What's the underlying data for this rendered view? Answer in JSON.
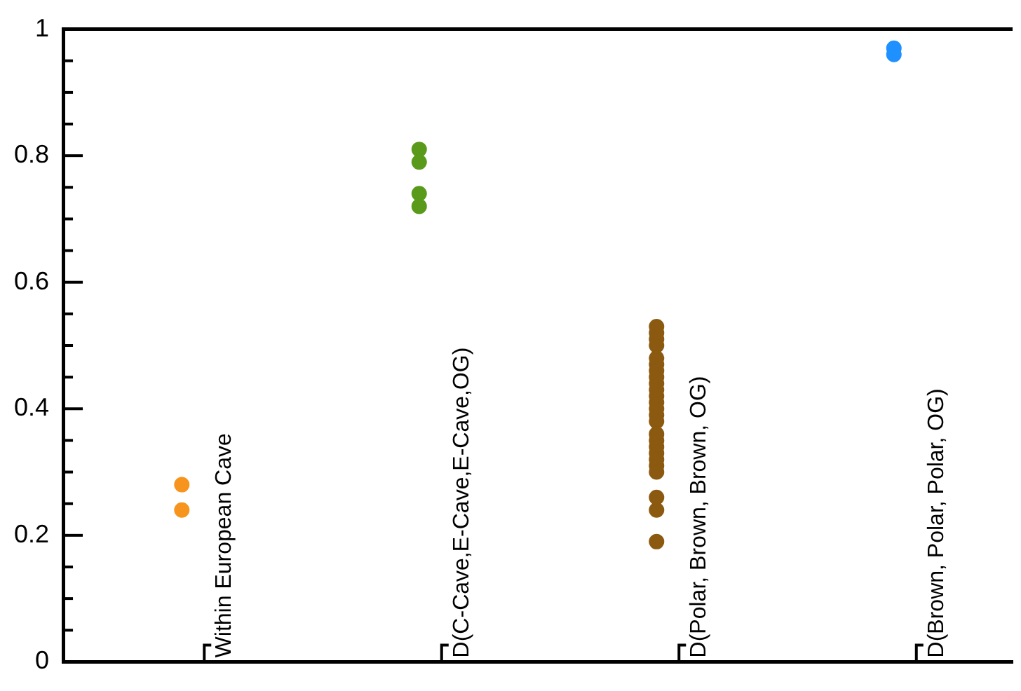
{
  "chart_data": {
    "type": "scatter",
    "categories": [
      "Within European Cave",
      "D(C-Cave,E-Cave,E-Cave,OG)",
      "D(Polar, Brown, Brown, OG)",
      "D(Brown, Polar, Polar, OG)"
    ],
    "series": [
      {
        "color": "#f7941d",
        "x": [
          "Within European Cave",
          "Within European Cave"
        ],
        "values": [
          0.28,
          0.24
        ]
      },
      {
        "color": "#5a9a1a",
        "x": [
          "D(C-Cave,E-Cave,E-Cave,OG)",
          "D(C-Cave,E-Cave,E-Cave,OG)",
          "D(C-Cave,E-Cave,E-Cave,OG)",
          "D(C-Cave,E-Cave,E-Cave,OG)"
        ],
        "values": [
          0.81,
          0.79,
          0.74,
          0.72
        ]
      },
      {
        "color": "#8b5a10",
        "x": [
          "D(Polar, Brown, Brown, OG)",
          "D(Polar, Brown, Brown, OG)",
          "D(Polar, Brown, Brown, OG)",
          "D(Polar, Brown, Brown, OG)",
          "D(Polar, Brown, Brown, OG)",
          "D(Polar, Brown, Brown, OG)",
          "D(Polar, Brown, Brown, OG)",
          "D(Polar, Brown, Brown, OG)",
          "D(Polar, Brown, Brown, OG)",
          "D(Polar, Brown, Brown, OG)",
          "D(Polar, Brown, Brown, OG)",
          "D(Polar, Brown, Brown, OG)",
          "D(Polar, Brown, Brown, OG)",
          "D(Polar, Brown, Brown, OG)",
          "D(Polar, Brown, Brown, OG)",
          "D(Polar, Brown, Brown, OG)",
          "D(Polar, Brown, Brown, OG)",
          "D(Polar, Brown, Brown, OG)",
          "D(Polar, Brown, Brown, OG)",
          "D(Polar, Brown, Brown, OG)",
          "D(Polar, Brown, Brown, OG)",
          "D(Polar, Brown, Brown, OG)",
          "D(Polar, Brown, Brown, OG)",
          "D(Polar, Brown, Brown, OG)",
          "D(Polar, Brown, Brown, OG)"
        ],
        "values": [
          0.53,
          0.52,
          0.51,
          0.5,
          0.48,
          0.47,
          0.46,
          0.45,
          0.44,
          0.43,
          0.42,
          0.41,
          0.4,
          0.39,
          0.38,
          0.36,
          0.35,
          0.34,
          0.33,
          0.32,
          0.31,
          0.3,
          0.26,
          0.24,
          0.19
        ]
      },
      {
        "color": "#1e90ff",
        "x": [
          "D(Brown, Polar, Polar, OG)",
          "D(Brown, Polar, Polar, OG)"
        ],
        "values": [
          0.97,
          0.96
        ]
      }
    ],
    "ylim": [
      0,
      1
    ],
    "yticks": [
      0,
      {
        "value": 0.05,
        "label": null
      },
      {
        "value": 0.1,
        "label": null
      },
      {
        "value": 0.15,
        "label": null
      },
      0.2,
      {
        "value": 0.25,
        "label": null
      },
      {
        "value": 0.3,
        "label": null
      },
      {
        "value": 0.35,
        "label": null
      },
      0.4,
      {
        "value": 0.45,
        "label": null
      },
      {
        "value": 0.5,
        "label": null
      },
      {
        "value": 0.55,
        "label": null
      },
      0.6,
      {
        "value": 0.65,
        "label": null
      },
      {
        "value": 0.7,
        "label": null
      },
      {
        "value": 0.75,
        "label": null
      },
      0.8,
      {
        "value": 0.85,
        "label": null
      },
      {
        "value": 0.9,
        "label": null
      },
      {
        "value": 0.95,
        "label": null
      },
      1
    ],
    "marker": "circle",
    "grid": false,
    "legend": false
  }
}
